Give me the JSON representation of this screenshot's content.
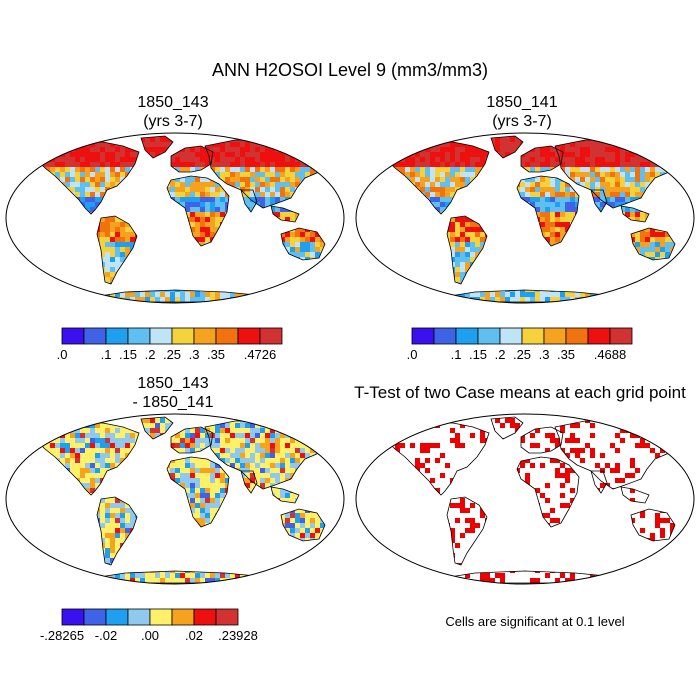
{
  "figure": {
    "title": "ANN H2OSOI Level 9 (mm3/mm3)"
  },
  "chart_data": [
    {
      "type": "heatmap",
      "panel": "top-left",
      "title_line1": "1850_143",
      "title_line2": "(yrs 3-7)",
      "colorbar": {
        "colors": [
          "#3a0ff0",
          "#3f63e6",
          "#1f9ff0",
          "#5fbff0",
          "#bfe4f7",
          "#f5d23c",
          "#f7a21e",
          "#f2720e",
          "#ee0f0f",
          "#d23232"
        ],
        "labels": [
          ".0",
          "",
          ".1",
          ".15",
          ".2",
          ".25",
          ".3",
          ".35",
          "",
          ".4726"
        ]
      }
    },
    {
      "type": "heatmap",
      "panel": "top-right",
      "title_line1": "1850_141",
      "title_line2": "(yrs 3-7)",
      "colorbar": {
        "colors": [
          "#3a0ff0",
          "#3f63e6",
          "#1f9ff0",
          "#5fbff0",
          "#bfe4f7",
          "#f5d23c",
          "#f7a21e",
          "#f2720e",
          "#ee0f0f",
          "#d23232"
        ],
        "labels": [
          ".0",
          "",
          ".1",
          ".15",
          ".2",
          ".25",
          ".3",
          ".35",
          "",
          ".4688"
        ]
      }
    },
    {
      "type": "heatmap",
      "panel": "bottom-left",
      "title_line1": "1850_143",
      "title_line2": "- 1850_141",
      "colorbar": {
        "colors": [
          "#3a0ff0",
          "#3f63e6",
          "#1f9ff0",
          "#8fcaee",
          "#fff06a",
          "#f7a21e",
          "#ee0f0f",
          "#d23232"
        ],
        "labels": [
          "-.28265",
          "",
          "-.02",
          "",
          ".00",
          "",
          ".02",
          "",
          ".23928"
        ]
      }
    },
    {
      "type": "heatmap",
      "panel": "bottom-right",
      "title": "T-Test of two Case means at each grid point",
      "note": "Cells are significant at 0.1 level",
      "significance_color": "#ee0000"
    }
  ]
}
